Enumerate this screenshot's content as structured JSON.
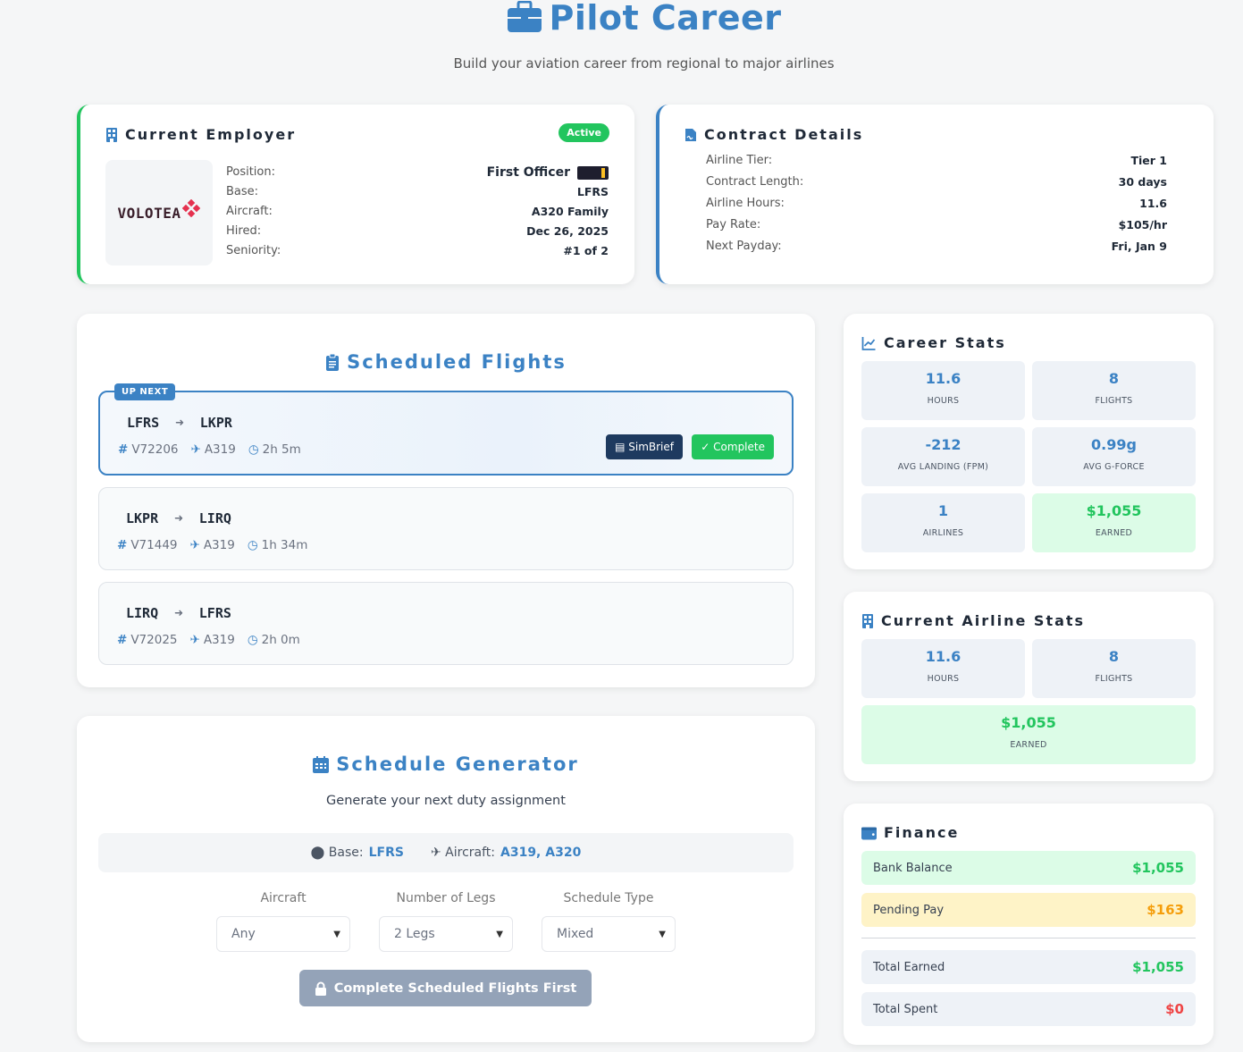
{
  "header": {
    "title": "Pilot Career",
    "subtitle": "Build your aviation career from regional to major airlines"
  },
  "employer": {
    "title": "Current Employer",
    "status": "Active",
    "logo_text": "VOLOTEA",
    "rows": [
      {
        "label": "Position:",
        "value": "First Officer"
      },
      {
        "label": "Base:",
        "value": "LFRS"
      },
      {
        "label": "Aircraft:",
        "value": "A320 Family"
      },
      {
        "label": "Hired:",
        "value": "Dec 26, 2025"
      },
      {
        "label": "Seniority:",
        "value": "#1 of 2"
      }
    ]
  },
  "contract": {
    "title": "Contract Details",
    "rows": [
      {
        "label": "Airline Tier:",
        "value": "Tier 1"
      },
      {
        "label": "Contract Length:",
        "value": "30 days"
      },
      {
        "label": "Airline Hours:",
        "value": "11.6"
      },
      {
        "label": "Pay Rate:",
        "value": "$105/hr"
      },
      {
        "label": "Next Payday:",
        "value": "Fri, Jan 9"
      }
    ]
  },
  "scheduled": {
    "title": "Scheduled Flights",
    "up_next_label": "UP NEXT",
    "simbrief_label": "SimBrief",
    "complete_label": "Complete",
    "flights": [
      {
        "from": "LFRS",
        "to": "LKPR",
        "number": "V72206",
        "aircraft": "A319",
        "duration": "2h 5m"
      },
      {
        "from": "LKPR",
        "to": "LIRQ",
        "number": "V71449",
        "aircraft": "A319",
        "duration": "1h 34m"
      },
      {
        "from": "LIRQ",
        "to": "LFRS",
        "number": "V72025",
        "aircraft": "A319",
        "duration": "2h 0m"
      }
    ]
  },
  "generator": {
    "title": "Schedule Generator",
    "subtitle": "Generate your next duty assignment",
    "base_label": "Base:",
    "base_value": "LFRS",
    "aircraft_label": "Aircraft:",
    "aircraft_value": "A319, A320",
    "aircraft_select_label": "Aircraft",
    "aircraft_select_value": "Any",
    "legs_label": "Number of Legs",
    "legs_value": "2 Legs",
    "type_label": "Schedule Type",
    "type_value": "Mixed",
    "button_label": "Complete Scheduled Flights First"
  },
  "career_stats": {
    "title": "Career Stats",
    "items": [
      {
        "value": "11.6",
        "label": "HOURS"
      },
      {
        "value": "8",
        "label": "FLIGHTS"
      },
      {
        "value": "-212",
        "label": "AVG LANDING (FPM)"
      },
      {
        "value": "0.99g",
        "label": "AVG G-FORCE"
      },
      {
        "value": "1",
        "label": "AIRLINES"
      },
      {
        "value": "$1,055",
        "label": "EARNED"
      }
    ]
  },
  "airline_stats": {
    "title": "Current Airline Stats",
    "items": [
      {
        "value": "11.6",
        "label": "HOURS"
      },
      {
        "value": "8",
        "label": "FLIGHTS"
      },
      {
        "value": "$1,055",
        "label": "EARNED"
      }
    ]
  },
  "finance": {
    "title": "Finance",
    "rows": [
      {
        "label": "Bank Balance",
        "value": "$1,055"
      },
      {
        "label": "Pending Pay",
        "value": "$163"
      },
      {
        "label": "Total Earned",
        "value": "$1,055"
      },
      {
        "label": "Total Spent",
        "value": "$0"
      }
    ]
  },
  "colors": {
    "accent": "#3b82c4",
    "success": "#22c55e",
    "warning": "#f59e0b",
    "danger": "#ef4444"
  }
}
